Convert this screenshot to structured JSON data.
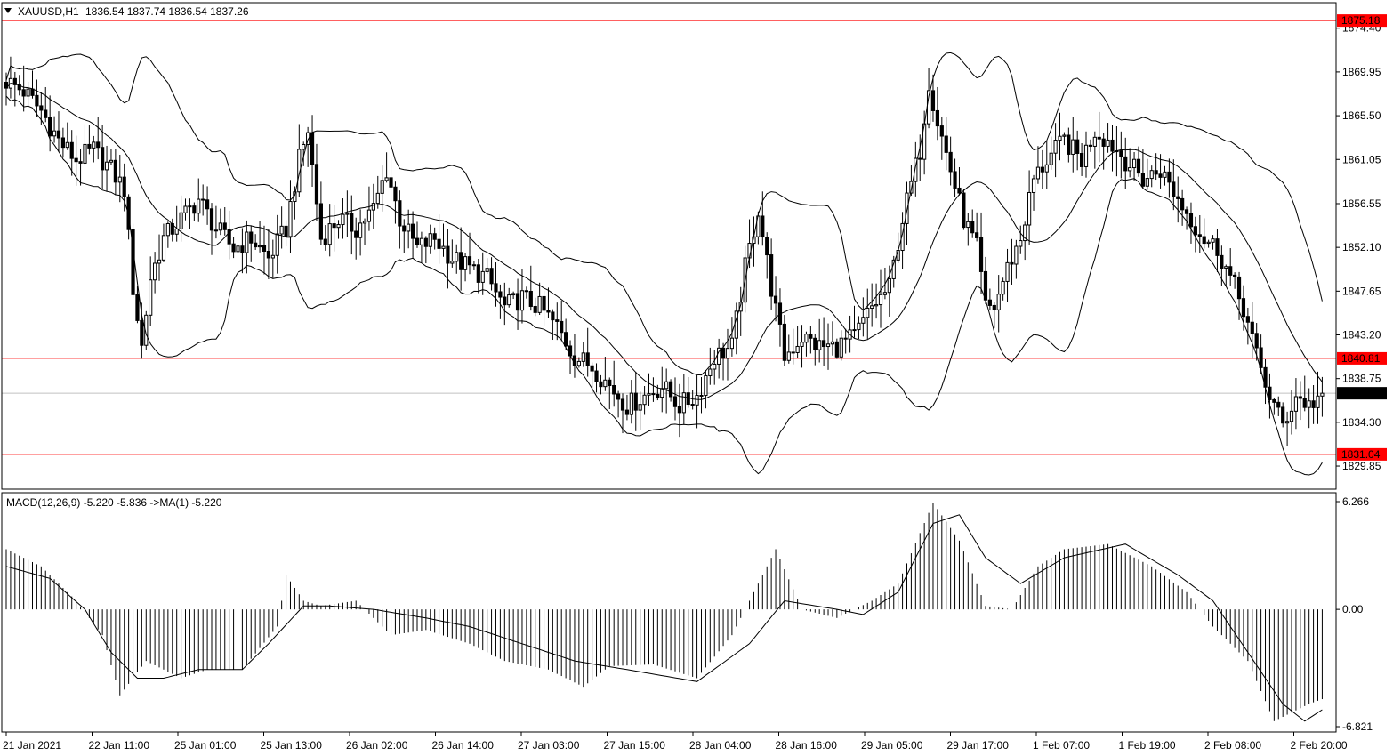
{
  "chart_data": [
    {
      "type": "candlestick",
      "title": "XAUUSD,H1",
      "ohlc_text": "1836.54 1837.74 1836.54 1837.26",
      "price_axis": {
        "ylim": [
          1827.5,
          1877.0
        ],
        "ticks": [
          1874.4,
          1869.95,
          1865.5,
          1861.05,
          1856.55,
          1852.1,
          1847.65,
          1843.2,
          1838.75,
          1834.3,
          1829.85
        ],
        "tick_labels": [
          "1874.40",
          "1869.95",
          "1865.50",
          "1861.05",
          "1856.55",
          "1852.10",
          "1847.65",
          "1843.20",
          "1838.75",
          "1834.30",
          "1829.85"
        ]
      },
      "horizontal_levels": [
        {
          "value": 1875.18,
          "label": "1875.18",
          "color": "#ff0000"
        },
        {
          "value": 1840.81,
          "label": "1840.81",
          "color": "#ff0000"
        },
        {
          "value": 1831.04,
          "label": "1831.04",
          "color": "#ff0000"
        }
      ],
      "current_price": {
        "value": 1837.26,
        "label": "1837.26",
        "line_color": "#c0c0c0",
        "label_bg": "#000000"
      },
      "overlay": "bollinger_bands",
      "close_path": [
        [
          0,
          1869
        ],
        [
          4,
          1868
        ],
        [
          8,
          1866
        ],
        [
          12,
          1863
        ],
        [
          16,
          1861
        ],
        [
          20,
          1862
        ],
        [
          24,
          1860
        ],
        [
          27,
          1858
        ],
        [
          29,
          1848
        ],
        [
          31,
          1842
        ],
        [
          33,
          1849
        ],
        [
          36,
          1853
        ],
        [
          40,
          1855
        ],
        [
          44,
          1857
        ],
        [
          48,
          1854
        ],
        [
          52,
          1852
        ],
        [
          56,
          1853
        ],
        [
          60,
          1851
        ],
        [
          64,
          1854
        ],
        [
          67,
          1861
        ],
        [
          69,
          1864
        ],
        [
          72,
          1853
        ],
        [
          76,
          1855
        ],
        [
          80,
          1854
        ],
        [
          84,
          1856
        ],
        [
          87,
          1860
        ],
        [
          90,
          1855
        ],
        [
          94,
          1852
        ],
        [
          98,
          1853
        ],
        [
          102,
          1851
        ],
        [
          106,
          1850
        ],
        [
          110,
          1849
        ],
        [
          114,
          1846
        ],
        [
          118,
          1847
        ],
        [
          122,
          1846
        ],
        [
          126,
          1844
        ],
        [
          130,
          1841
        ],
        [
          134,
          1840
        ],
        [
          138,
          1838
        ],
        [
          142,
          1836
        ],
        [
          146,
          1837
        ],
        [
          150,
          1838
        ],
        [
          154,
          1836
        ],
        [
          158,
          1837
        ],
        [
          162,
          1841
        ],
        [
          166,
          1842
        ],
        [
          169,
          1850
        ],
        [
          172,
          1856
        ],
        [
          175,
          1848
        ],
        [
          178,
          1841
        ],
        [
          182,
          1843
        ],
        [
          186,
          1842
        ],
        [
          190,
          1842
        ],
        [
          194,
          1843
        ],
        [
          198,
          1846
        ],
        [
          202,
          1848
        ],
        [
          205,
          1855
        ],
        [
          209,
          1862
        ],
        [
          211,
          1869
        ],
        [
          213,
          1865
        ],
        [
          216,
          1860
        ],
        [
          219,
          1855
        ],
        [
          222,
          1852
        ],
        [
          224,
          1846
        ],
        [
          226,
          1846
        ],
        [
          229,
          1850
        ],
        [
          232,
          1853
        ],
        [
          235,
          1859
        ],
        [
          238,
          1861
        ],
        [
          242,
          1863
        ],
        [
          246,
          1861
        ],
        [
          249,
          1864
        ],
        [
          252,
          1863
        ],
        [
          256,
          1861
        ],
        [
          260,
          1859
        ],
        [
          264,
          1860
        ],
        [
          268,
          1857
        ],
        [
          271,
          1855
        ],
        [
          274,
          1853
        ],
        [
          277,
          1852
        ],
        [
          280,
          1849
        ],
        [
          283,
          1846
        ],
        [
          286,
          1841
        ],
        [
          289,
          1837
        ],
        [
          292,
          1834
        ],
        [
          295,
          1837
        ],
        [
          298,
          1836
        ],
        [
          301,
          1837.26
        ]
      ]
    },
    {
      "type": "histogram+line",
      "title": "MACD(12,26,9) -5.220 -5.836  ->MA(1) -5.220",
      "ylim": [
        -6.821,
        6.266
      ],
      "tick_labels": [
        "6.266",
        "0.00",
        "-6.821"
      ],
      "ticks": [
        6.266,
        0.0,
        -6.821
      ],
      "histogram_path": [
        [
          0,
          3.5
        ],
        [
          8,
          2.5
        ],
        [
          16,
          0.5
        ],
        [
          22,
          -1.5
        ],
        [
          26,
          -5.0
        ],
        [
          32,
          -3.0
        ],
        [
          40,
          -4.0
        ],
        [
          46,
          -3.5
        ],
        [
          54,
          -3.5
        ],
        [
          62,
          -1.0
        ],
        [
          64,
          2.0
        ],
        [
          68,
          0.5
        ],
        [
          72,
          0.2
        ],
        [
          80,
          0.5
        ],
        [
          88,
          -1.5
        ],
        [
          96,
          -1.2
        ],
        [
          106,
          -2.0
        ],
        [
          114,
          -3.0
        ],
        [
          124,
          -3.5
        ],
        [
          132,
          -4.5
        ],
        [
          138,
          -3.3
        ],
        [
          148,
          -3.2
        ],
        [
          158,
          -4.0
        ],
        [
          166,
          -1.5
        ],
        [
          176,
          3.5
        ],
        [
          182,
          0.0
        ],
        [
          190,
          -0.5
        ],
        [
          198,
          0.5
        ],
        [
          204,
          1.5
        ],
        [
          212,
          6.2
        ],
        [
          218,
          4.0
        ],
        [
          224,
          0.2
        ],
        [
          230,
          0.0
        ],
        [
          236,
          2.5
        ],
        [
          242,
          3.5
        ],
        [
          252,
          3.8
        ],
        [
          262,
          2.5
        ],
        [
          270,
          1.0
        ],
        [
          276,
          -1.0
        ],
        [
          284,
          -3.0
        ],
        [
          290,
          -6.5
        ],
        [
          298,
          -5.5
        ],
        [
          301,
          -5.22
        ]
      ],
      "signal_path": [
        [
          0,
          2.5
        ],
        [
          10,
          1.8
        ],
        [
          18,
          0.0
        ],
        [
          24,
          -2.5
        ],
        [
          30,
          -4.0
        ],
        [
          36,
          -4.0
        ],
        [
          44,
          -3.5
        ],
        [
          54,
          -3.5
        ],
        [
          60,
          -2.0
        ],
        [
          68,
          0.2
        ],
        [
          74,
          0.2
        ],
        [
          84,
          0.0
        ],
        [
          96,
          -0.5
        ],
        [
          106,
          -1.0
        ],
        [
          118,
          -2.0
        ],
        [
          130,
          -3.0
        ],
        [
          142,
          -3.5
        ],
        [
          158,
          -4.2
        ],
        [
          170,
          -2.0
        ],
        [
          178,
          0.5
        ],
        [
          190,
          0.0
        ],
        [
          196,
          -0.3
        ],
        [
          204,
          1.0
        ],
        [
          212,
          5.0
        ],
        [
          218,
          5.5
        ],
        [
          224,
          3.0
        ],
        [
          232,
          1.5
        ],
        [
          242,
          3.0
        ],
        [
          256,
          3.8
        ],
        [
          268,
          2.0
        ],
        [
          276,
          0.5
        ],
        [
          284,
          -2.5
        ],
        [
          292,
          -5.5
        ],
        [
          297,
          -6.5
        ],
        [
          301,
          -5.836
        ]
      ]
    }
  ],
  "time_axis": {
    "labels": [
      "21 Jan 2021",
      "22 Jan 11:00",
      "25 Jan 01:00",
      "25 Jan 13:00",
      "26 Jan 02:00",
      "26 Jan 14:00",
      "27 Jan 03:00",
      "27 Jan 15:00",
      "28 Jan 04:00",
      "28 Jan 16:00",
      "29 Jan 05:00",
      "29 Jan 17:00",
      "1 Feb 07:00",
      "1 Feb 19:00",
      "2 Feb 08:00",
      "2 Feb 20:00"
    ]
  },
  "colors": {
    "background": "#ffffff",
    "foreground": "#000000",
    "level_line": "#ff0000",
    "current_price_line": "#c0c0c0"
  }
}
